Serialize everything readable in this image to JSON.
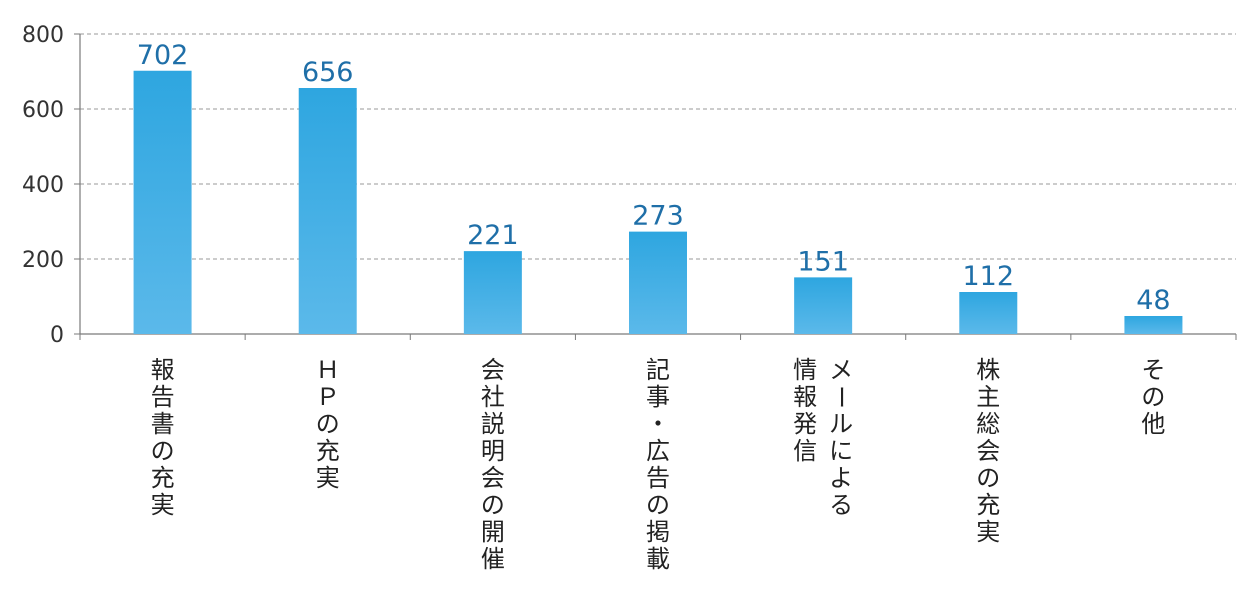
{
  "chart_data": {
    "type": "bar",
    "categories": [
      [
        "報告書の充実"
      ],
      [
        "ＨＰの充実"
      ],
      [
        "会社説明会の開催"
      ],
      [
        "記事・広告の掲載"
      ],
      [
        "メールによる",
        "情報発信"
      ],
      [
        "株主総会の充実"
      ],
      [
        "その他"
      ]
    ],
    "values": [
      702,
      656,
      221,
      273,
      151,
      112,
      48
    ],
    "ylim": [
      0,
      800
    ],
    "yticks": [
      0,
      200,
      400,
      600,
      800
    ],
    "grid": true,
    "bar_color_top": "#2ea6e0",
    "bar_color_bottom": "#5bb9ea",
    "label_color": "#1f6fa8"
  }
}
